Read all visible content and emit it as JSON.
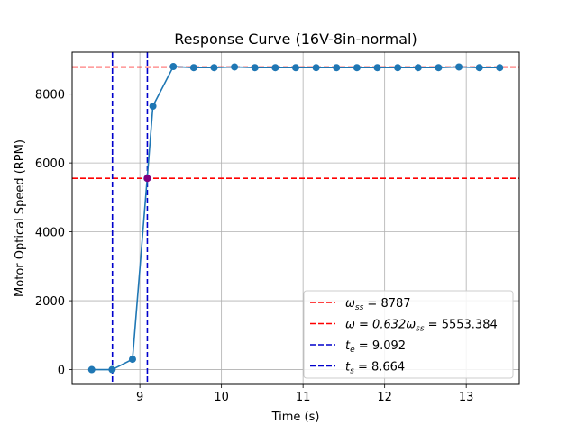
{
  "chart_data": {
    "type": "line",
    "title": "Response Curve (16V-8in-normal)",
    "xlabel": "Time (s)",
    "ylabel": "Motor Optical Speed (RPM)",
    "xlim": [
      8.17,
      13.65
    ],
    "ylim": [
      -430,
      9220
    ],
    "x_ticks": [
      9,
      10,
      11,
      12,
      13
    ],
    "y_ticks": [
      0,
      2000,
      4000,
      6000,
      8000
    ],
    "grid": true,
    "legend_position": "lower right",
    "series": [
      {
        "color": "#1f77b4",
        "marker": "circle",
        "x": [
          8.41,
          8.66,
          8.91,
          9.09,
          9.16,
          9.41,
          9.66,
          9.91,
          10.16,
          10.41,
          10.66,
          10.91,
          11.16,
          11.41,
          11.66,
          11.91,
          12.16,
          12.41,
          12.66,
          12.91,
          13.16,
          13.41
        ],
        "y": [
          0,
          0,
          300,
          5553,
          7650,
          8800,
          8770,
          8770,
          8790,
          8770,
          8770,
          8770,
          8770,
          8770,
          8770,
          8770,
          8770,
          8770,
          8770,
          8790,
          8770,
          8770
        ]
      }
    ],
    "highlight_point": {
      "x": 9.092,
      "y": 5553.384,
      "color": "#800080"
    },
    "reference_lines": [
      {
        "orientation": "horizontal",
        "value": 8787,
        "color": "#ff0000",
        "style": "dashed",
        "legend_prefix": "ω",
        "legend_sub": "ss",
        "legend_suffix": " = 8787"
      },
      {
        "orientation": "horizontal",
        "value": 5553.384,
        "color": "#ff0000",
        "style": "dashed",
        "legend_prefix": "ω = 0.632ω",
        "legend_sub": "ss",
        "legend_suffix": " = 5553.384"
      },
      {
        "orientation": "vertical",
        "value": 9.092,
        "color": "#0000cc",
        "style": "dashed",
        "legend_prefix": "t",
        "legend_sub": "e",
        "legend_suffix": " = 9.092"
      },
      {
        "orientation": "vertical",
        "value": 8.664,
        "color": "#0000cc",
        "style": "dashed",
        "legend_prefix": "t",
        "legend_sub": "s",
        "legend_suffix": " = 8.664"
      }
    ]
  }
}
